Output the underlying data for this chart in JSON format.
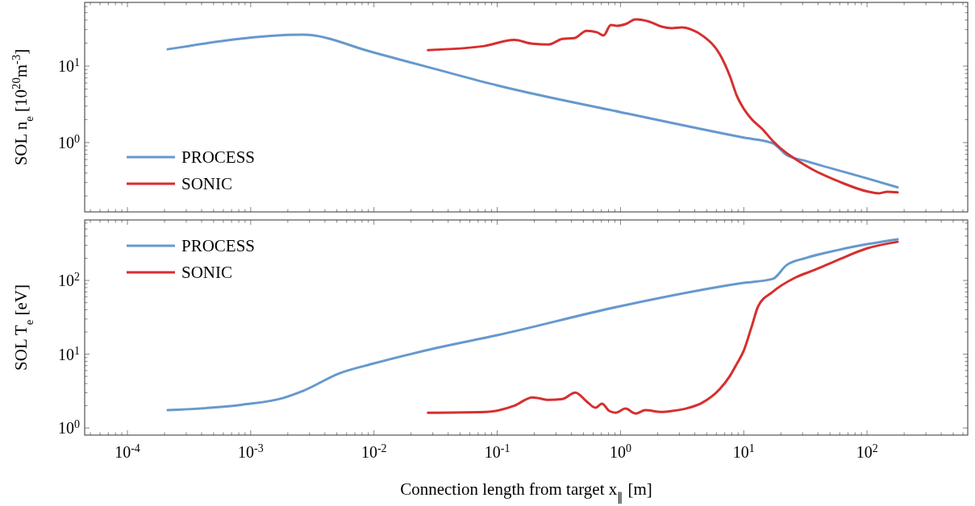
{
  "chart_data": [
    {
      "type": "line",
      "ylabel": "SOL n$_{e}$ [10$^{20}$m$^{-3}$]",
      "log": "xy",
      "legend": "bottom left",
      "tick_labels": "y",
      "line_style": "solid",
      "marker": "none",
      "grid": false,
      "xlim": [
        4.5e-05,
        656
      ],
      "ylim": [
        0.124,
        68
      ],
      "xticks": [
        {
          "value": 0.0001,
          "label": null
        },
        {
          "value": 0.001,
          "label": null
        },
        {
          "value": 0.01,
          "label": null
        },
        {
          "value": 0.1,
          "label": null
        },
        {
          "value": 1,
          "label": null
        },
        {
          "value": 10,
          "label": null
        },
        {
          "value": 100,
          "label": null
        },
        {
          "value": 5e-05,
          "label": null
        },
        {
          "value": 6e-05,
          "label": null
        },
        {
          "value": 7e-05,
          "label": null
        },
        {
          "value": 8e-05,
          "label": null
        },
        {
          "value": 9e-05,
          "label": null
        },
        {
          "value": 0.0002,
          "label": null
        },
        {
          "value": 0.0003,
          "label": null
        },
        {
          "value": 0.0004,
          "label": null
        },
        {
          "value": 0.0005,
          "label": null
        },
        {
          "value": 0.0006,
          "label": null
        },
        {
          "value": 0.0007,
          "label": null
        },
        {
          "value": 0.0008,
          "label": null
        },
        {
          "value": 0.0009,
          "label": null
        },
        {
          "value": 0.002,
          "label": null
        },
        {
          "value": 0.003,
          "label": null
        },
        {
          "value": 0.004,
          "label": null
        },
        {
          "value": 0.005,
          "label": null
        },
        {
          "value": 0.006,
          "label": null
        },
        {
          "value": 0.007,
          "label": null
        },
        {
          "value": 0.008,
          "label": null
        },
        {
          "value": 0.009,
          "label": null
        },
        {
          "value": 0.02,
          "label": null
        },
        {
          "value": 0.03,
          "label": null
        },
        {
          "value": 0.04,
          "label": null
        },
        {
          "value": 0.05,
          "label": null
        },
        {
          "value": 0.06,
          "label": null
        },
        {
          "value": 0.07,
          "label": null
        },
        {
          "value": 0.08,
          "label": null
        },
        {
          "value": 0.09,
          "label": null
        },
        {
          "value": 0.2,
          "label": null
        },
        {
          "value": 0.3,
          "label": null
        },
        {
          "value": 0.4,
          "label": null
        },
        {
          "value": 0.5,
          "label": null
        },
        {
          "value": 0.6,
          "label": null
        },
        {
          "value": 0.7,
          "label": null
        },
        {
          "value": 0.8,
          "label": null
        },
        {
          "value": 0.9,
          "label": null
        },
        {
          "value": 2,
          "label": null
        },
        {
          "value": 3,
          "label": null
        },
        {
          "value": 4,
          "label": null
        },
        {
          "value": 5,
          "label": null
        },
        {
          "value": 6,
          "label": null
        },
        {
          "value": 7,
          "label": null
        },
        {
          "value": 8,
          "label": null
        },
        {
          "value": 9,
          "label": null
        },
        {
          "value": 20,
          "label": null
        },
        {
          "value": 30,
          "label": null
        },
        {
          "value": 40,
          "label": null
        },
        {
          "value": 50,
          "label": null
        },
        {
          "value": 60,
          "label": null
        },
        {
          "value": 70,
          "label": null
        },
        {
          "value": 80,
          "label": null
        },
        {
          "value": 90,
          "label": null
        },
        {
          "value": 200,
          "label": null
        },
        {
          "value": 300,
          "label": null
        },
        {
          "value": 400,
          "label": null
        },
        {
          "value": 500,
          "label": null
        },
        {
          "value": 600,
          "label": null
        }
      ],
      "yticks": [
        {
          "value": 1,
          "label": "10$^{0}$"
        },
        {
          "value": 10,
          "label": "10$^{1}$"
        },
        {
          "value": 0.2,
          "label": null
        },
        {
          "value": 0.3,
          "label": null
        },
        {
          "value": 0.4,
          "label": null
        },
        {
          "value": 0.5,
          "label": null
        },
        {
          "value": 0.6,
          "label": null
        },
        {
          "value": 0.7,
          "label": null
        },
        {
          "value": 0.8,
          "label": null
        },
        {
          "value": 0.9,
          "label": null
        },
        {
          "value": 2,
          "label": null
        },
        {
          "value": 3,
          "label": null
        },
        {
          "value": 4,
          "label": null
        },
        {
          "value": 5,
          "label": null
        },
        {
          "value": 6,
          "label": null
        },
        {
          "value": 7,
          "label": null
        },
        {
          "value": 8,
          "label": null
        },
        {
          "value": 9,
          "label": null
        },
        {
          "value": 20,
          "label": null
        },
        {
          "value": 30,
          "label": null
        },
        {
          "value": 40,
          "label": null
        },
        {
          "value": 50,
          "label": null
        },
        {
          "value": 60,
          "label": null
        }
      ],
      "series": [
        {
          "name": "PROCESS",
          "color": "#6699cc",
          "x": [
            0.000212,
            0.00266,
            0.01,
            0.0318,
            0.1,
            1,
            10,
            17.2,
            22.2,
            32.4,
            100,
            177
          ],
          "values": [
            16.6,
            25.7,
            15,
            9.1,
            5.6,
            2.5,
            1.16,
            0.98,
            0.69,
            0.57,
            0.34,
            0.26
          ]
        },
        {
          "name": "SONIC",
          "color": "#d62f2f",
          "x": [
            0.0274,
            0.0786,
            0.137,
            0.194,
            0.262,
            0.338,
            0.424,
            0.531,
            0.646,
            0.729,
            0.835,
            0.942,
            1.094,
            1.33,
            1.72,
            2.15,
            2.62,
            3.14,
            3.82,
            4.71,
            6.37,
            7.74,
            8.74,
            10,
            11.6,
            14.1,
            17.2,
            22.2,
            25.8,
            37.6,
            59,
            100,
            125,
            146,
            177
          ],
          "values": [
            16.2,
            18.3,
            22,
            19.6,
            19.2,
            22.7,
            23.3,
            29,
            27.6,
            25.2,
            34.4,
            33.6,
            35.3,
            40.8,
            38,
            32.8,
            31.3,
            32,
            29.7,
            24.5,
            14.4,
            7.3,
            4.17,
            2.77,
            2.02,
            1.51,
            1.05,
            0.73,
            0.62,
            0.43,
            0.31,
            0.23,
            0.217,
            0.228,
            0.223
          ]
        }
      ]
    },
    {
      "type": "line",
      "ylabel": "SOL T$_{e}$ [eV]",
      "xlabel": "Connection length from target x$_{∥}$ [m]",
      "log": "xy",
      "legend": "top left",
      "line_style": "solid",
      "marker": "none",
      "grid": false,
      "xlim": [
        4.5e-05,
        656
      ],
      "ylim": [
        0.8,
        661
      ],
      "xticks": [
        {
          "value": 0.0001,
          "label": "10$^{-4}$"
        },
        {
          "value": 0.001,
          "label": "10$^{-3}$"
        },
        {
          "value": 0.01,
          "label": "10$^{-2}$"
        },
        {
          "value": 0.1,
          "label": "10$^{-1}$"
        },
        {
          "value": 1,
          "label": "10$^{0}$"
        },
        {
          "value": 10,
          "label": "10$^{1}$"
        },
        {
          "value": 100,
          "label": "10$^{2}$"
        },
        {
          "value": 5e-05,
          "label": null
        },
        {
          "value": 6e-05,
          "label": null
        },
        {
          "value": 7e-05,
          "label": null
        },
        {
          "value": 8e-05,
          "label": null
        },
        {
          "value": 9e-05,
          "label": null
        },
        {
          "value": 0.0002,
          "label": null
        },
        {
          "value": 0.0003,
          "label": null
        },
        {
          "value": 0.0004,
          "label": null
        },
        {
          "value": 0.0005,
          "label": null
        },
        {
          "value": 0.0006,
          "label": null
        },
        {
          "value": 0.0007,
          "label": null
        },
        {
          "value": 0.0008,
          "label": null
        },
        {
          "value": 0.0009,
          "label": null
        },
        {
          "value": 0.002,
          "label": null
        },
        {
          "value": 0.003,
          "label": null
        },
        {
          "value": 0.004,
          "label": null
        },
        {
          "value": 0.005,
          "label": null
        },
        {
          "value": 0.006,
          "label": null
        },
        {
          "value": 0.007,
          "label": null
        },
        {
          "value": 0.008,
          "label": null
        },
        {
          "value": 0.009,
          "label": null
        },
        {
          "value": 0.02,
          "label": null
        },
        {
          "value": 0.03,
          "label": null
        },
        {
          "value": 0.04,
          "label": null
        },
        {
          "value": 0.05,
          "label": null
        },
        {
          "value": 0.06,
          "label": null
        },
        {
          "value": 0.07,
          "label": null
        },
        {
          "value": 0.08,
          "label": null
        },
        {
          "value": 0.09,
          "label": null
        },
        {
          "value": 0.2,
          "label": null
        },
        {
          "value": 0.3,
          "label": null
        },
        {
          "value": 0.4,
          "label": null
        },
        {
          "value": 0.5,
          "label": null
        },
        {
          "value": 0.6,
          "label": null
        },
        {
          "value": 0.7,
          "label": null
        },
        {
          "value": 0.8,
          "label": null
        },
        {
          "value": 0.9,
          "label": null
        },
        {
          "value": 2,
          "label": null
        },
        {
          "value": 3,
          "label": null
        },
        {
          "value": 4,
          "label": null
        },
        {
          "value": 5,
          "label": null
        },
        {
          "value": 6,
          "label": null
        },
        {
          "value": 7,
          "label": null
        },
        {
          "value": 8,
          "label": null
        },
        {
          "value": 9,
          "label": null
        },
        {
          "value": 20,
          "label": null
        },
        {
          "value": 30,
          "label": null
        },
        {
          "value": 40,
          "label": null
        },
        {
          "value": 50,
          "label": null
        },
        {
          "value": 60,
          "label": null
        },
        {
          "value": 70,
          "label": null
        },
        {
          "value": 80,
          "label": null
        },
        {
          "value": 90,
          "label": null
        },
        {
          "value": 200,
          "label": null
        },
        {
          "value": 300,
          "label": null
        },
        {
          "value": 400,
          "label": null
        },
        {
          "value": 500,
          "label": null
        },
        {
          "value": 600,
          "label": null
        }
      ],
      "yticks": [
        {
          "value": 1,
          "label": "10$^{0}$"
        },
        {
          "value": 10,
          "label": "10$^{1}$"
        },
        {
          "value": 100,
          "label": "10$^{2}$"
        },
        {
          "value": 2,
          "label": null
        },
        {
          "value": 3,
          "label": null
        },
        {
          "value": 4,
          "label": null
        },
        {
          "value": 5,
          "label": null
        },
        {
          "value": 6,
          "label": null
        },
        {
          "value": 7,
          "label": null
        },
        {
          "value": 8,
          "label": null
        },
        {
          "value": 9,
          "label": null
        },
        {
          "value": 20,
          "label": null
        },
        {
          "value": 30,
          "label": null
        },
        {
          "value": 40,
          "label": null
        },
        {
          "value": 50,
          "label": null
        },
        {
          "value": 60,
          "label": null
        },
        {
          "value": 70,
          "label": null
        },
        {
          "value": 80,
          "label": null
        },
        {
          "value": 90,
          "label": null
        },
        {
          "value": 200,
          "label": null
        },
        {
          "value": 300,
          "label": null
        },
        {
          "value": 400,
          "label": null
        },
        {
          "value": 500,
          "label": null
        },
        {
          "value": 600,
          "label": null
        }
      ],
      "series": [
        {
          "name": "PROCESS",
          "color": "#6699cc",
          "x": [
            0.000212,
            0.00086,
            0.00182,
            0.00266,
            0.00524,
            0.01,
            0.0318,
            0.1,
            1,
            10,
            17.2,
            22.2,
            32.4,
            59,
            100,
            177
          ],
          "values": [
            1.74,
            2.07,
            2.54,
            3.18,
            5.5,
            7.5,
            12.1,
            18.1,
            44.8,
            92.7,
            105,
            161,
            203,
            260,
            310,
            362
          ]
        },
        {
          "name": "SONIC",
          "color": "#d62f2f",
          "x": [
            0.0274,
            0.081,
            0.137,
            0.194,
            0.262,
            0.338,
            0.43,
            0.531,
            0.627,
            0.707,
            0.81,
            0.914,
            1.094,
            1.33,
            1.59,
            2.15,
            2.62,
            3.38,
            4.57,
            6.37,
            7.74,
            8.74,
            10,
            11.6,
            13.1,
            17.2,
            25.8,
            37.6,
            59,
            100,
            177
          ],
          "values": [
            1.61,
            1.65,
            2.0,
            2.6,
            2.4,
            2.47,
            3.02,
            2.29,
            1.88,
            2.13,
            1.7,
            1.61,
            1.83,
            1.57,
            1.74,
            1.65,
            1.7,
            1.83,
            2.18,
            3.35,
            5.1,
            7.3,
            11.2,
            23.8,
            44.8,
            70.3,
            108,
            139,
            192,
            272,
            334
          ]
        }
      ]
    }
  ]
}
